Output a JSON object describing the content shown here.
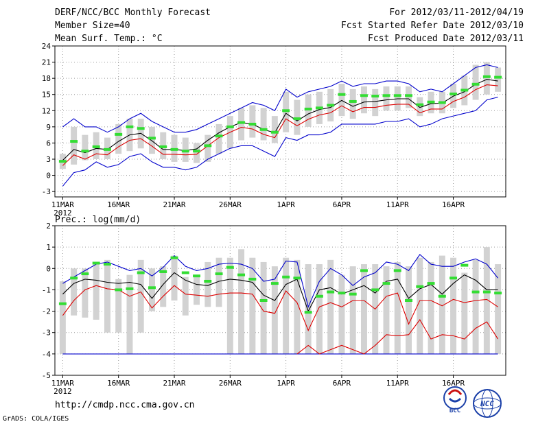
{
  "header": {
    "title": "DERF/NCC/BCC Monthly Forecast",
    "member_size": "Member Size=40",
    "variable": "Mean Surf. Temp.: °C",
    "period": "For 2012/03/11-2012/04/19",
    "fcst_started": "Fcst Started Refer Date 2012/03/10",
    "fcst_produced": "Fcst Produced Date 2012/03/11"
  },
  "footer": {
    "url": "http://cmdp.ncc.cma.gov.cn",
    "grads_credit": "GrADS: COLA/IGES",
    "logo_bcc": "BCC",
    "logo_ncc": "NCC"
  },
  "colors": {
    "box": "#d2d2d2",
    "median": "#33dd33",
    "mean": "#000000",
    "lower_band": "#dd0000",
    "envelope": "#0000cc",
    "grid": "#999999"
  },
  "chart_data": [
    {
      "type": "box",
      "title": "Mean Surf. Temp.: °C",
      "x_tick_labels": [
        "11MAR",
        "16MAR",
        "21MAR",
        "26MAR",
        "1APR",
        "6APR",
        "11APR",
        "16APR"
      ],
      "x_tick_days": [
        1,
        6,
        11,
        16,
        21,
        26,
        31,
        36
      ],
      "x_year_label": "2012",
      "x_range": [
        0.3,
        40.7
      ],
      "ylim": [
        -4,
        24
      ],
      "y_ticks": [
        -3,
        0,
        3,
        6,
        9,
        12,
        15,
        18,
        21,
        24
      ],
      "days": [
        1,
        2,
        3,
        4,
        5,
        6,
        7,
        8,
        9,
        10,
        11,
        12,
        13,
        14,
        15,
        16,
        17,
        18,
        19,
        20,
        21,
        22,
        23,
        24,
        25,
        26,
        27,
        28,
        29,
        30,
        31,
        32,
        33,
        34,
        35,
        36,
        37,
        38,
        39,
        40
      ],
      "box_low": [
        1.2,
        2.0,
        2.8,
        3.0,
        3.0,
        4.0,
        4.5,
        5.0,
        4.0,
        3.0,
        2.5,
        2.5,
        2.3,
        2.5,
        4.0,
        5.0,
        6.5,
        7.0,
        6.5,
        6.0,
        8.0,
        7.5,
        9.0,
        9.5,
        10.0,
        11.0,
        10.5,
        11.5,
        11.0,
        12.0,
        12.0,
        12.5,
        11.0,
        11.5,
        11.5,
        12.5,
        13.0,
        14.0,
        15.0,
        15.5
      ],
      "box_high": [
        4.0,
        9.0,
        7.5,
        8.0,
        7.0,
        9.5,
        10.5,
        10.5,
        9.0,
        8.0,
        7.5,
        7.0,
        6.0,
        7.5,
        9.5,
        11.0,
        12.5,
        13.0,
        12.5,
        11.0,
        15.5,
        14.0,
        15.0,
        15.5,
        16.0,
        17.0,
        16.0,
        16.5,
        16.0,
        16.5,
        16.5,
        16.5,
        14.5,
        15.5,
        15.5,
        17.0,
        18.5,
        20.5,
        21.0,
        20.0
      ],
      "median": [
        2.6,
        6.3,
        4.5,
        5.3,
        4.8,
        7.6,
        9.0,
        8.7,
        6.9,
        5.3,
        4.8,
        4.5,
        4.5,
        5.5,
        7.3,
        9.0,
        9.8,
        9.5,
        8.5,
        8.0,
        12.0,
        10.5,
        12.3,
        12.5,
        13.0,
        15.0,
        13.7,
        14.8,
        14.7,
        14.8,
        14.8,
        14.8,
        13.1,
        13.6,
        13.5,
        15.1,
        15.8,
        16.9,
        18.3,
        18.2
      ],
      "mean": [
        2.8,
        4.8,
        4.2,
        5.0,
        4.8,
        6.3,
        7.5,
        7.8,
        6.4,
        4.8,
        4.8,
        4.6,
        4.9,
        6.5,
        7.9,
        9.0,
        9.8,
        9.5,
        8.5,
        7.9,
        11.5,
        10.1,
        11.4,
        12.2,
        12.6,
        13.9,
        12.8,
        13.6,
        13.7,
        14.0,
        14.2,
        14.2,
        12.6,
        13.3,
        13.4,
        14.7,
        15.5,
        16.9,
        17.8,
        17.5
      ],
      "lower": [
        1.8,
        3.8,
        3.0,
        4.0,
        3.8,
        5.3,
        6.5,
        6.8,
        5.4,
        3.9,
        3.9,
        3.8,
        3.9,
        5.5,
        7.0,
        8.0,
        8.9,
        8.6,
        7.6,
        7.0,
        10.5,
        9.2,
        10.4,
        11.2,
        11.6,
        12.9,
        11.8,
        12.6,
        12.6,
        13.0,
        13.2,
        13.2,
        11.6,
        12.3,
        12.3,
        13.7,
        14.5,
        15.9,
        16.8,
        16.6
      ],
      "env_high": [
        9.0,
        10.5,
        9.0,
        9.0,
        8.0,
        9.0,
        10.5,
        11.5,
        10.0,
        9.0,
        8.0,
        8.0,
        8.5,
        9.5,
        10.5,
        11.5,
        12.5,
        13.5,
        13.0,
        12.0,
        16.0,
        14.5,
        15.5,
        16.0,
        16.5,
        17.5,
        16.5,
        17.0,
        17.0,
        17.5,
        17.5,
        17.0,
        15.5,
        16.0,
        15.5,
        17.0,
        18.5,
        20.0,
        20.5,
        20.0
      ],
      "env_low": [
        -2.0,
        0.5,
        1.0,
        2.5,
        1.5,
        2.0,
        3.5,
        4.0,
        2.5,
        1.5,
        1.5,
        1.0,
        1.5,
        3.0,
        4.0,
        5.0,
        5.5,
        5.5,
        4.5,
        3.5,
        7.0,
        6.5,
        7.5,
        7.5,
        8.0,
        9.5,
        9.5,
        9.5,
        9.5,
        10.0,
        10.0,
        10.5,
        9.0,
        9.5,
        10.5,
        11.0,
        11.5,
        12.0,
        14.0,
        14.5
      ]
    },
    {
      "type": "box",
      "title": "Prec.: log(mm/d)",
      "x_tick_labels": [
        "11MAR",
        "16MAR",
        "21MAR",
        "26MAR",
        "1APR",
        "6APR",
        "11APR",
        "16APR"
      ],
      "x_tick_days": [
        1,
        6,
        11,
        16,
        21,
        26,
        31,
        36
      ],
      "x_year_label": "2012",
      "x_range": [
        0.3,
        40.7
      ],
      "ylim": [
        -5,
        2
      ],
      "y_ticks": [
        -5,
        -4,
        -3,
        -2,
        -1,
        0,
        1,
        2
      ],
      "days": [
        1,
        2,
        3,
        4,
        5,
        6,
        7,
        8,
        9,
        10,
        11,
        12,
        13,
        14,
        15,
        16,
        17,
        18,
        19,
        20,
        21,
        22,
        23,
        24,
        25,
        26,
        27,
        28,
        29,
        30,
        31,
        32,
        33,
        34,
        35,
        36,
        37,
        38,
        39,
        40
      ],
      "box_low": [
        -4.0,
        -2.2,
        -2.3,
        -2.4,
        -3.0,
        -3.0,
        -4.0,
        -3.0,
        -2.0,
        -1.8,
        -1.5,
        -2.2,
        -1.7,
        -1.8,
        -1.8,
        -4.0,
        -4.0,
        -4.0,
        -4.0,
        -4.0,
        -4.0,
        -4.0,
        -4.0,
        -4.0,
        -4.0,
        -4.0,
        -4.0,
        -4.0,
        -4.0,
        -4.0,
        -4.0,
        -4.0,
        -4.0,
        -4.0,
        -4.0,
        -4.0,
        -4.0,
        -4.0,
        -4.0,
        -4.0
      ],
      "box_high": [
        -0.6,
        0.0,
        0.0,
        0.3,
        0.4,
        -0.5,
        -0.3,
        0.4,
        0.0,
        0.1,
        0.6,
        -0.4,
        -0.4,
        0.3,
        0.5,
        0.5,
        0.9,
        0.5,
        0.3,
        0.1,
        0.5,
        0.4,
        0.2,
        0.2,
        0.4,
        -0.3,
        0.1,
        0.2,
        0.2,
        0.1,
        0.3,
        0.1,
        0.5,
        0.3,
        0.6,
        0.5,
        -0.2,
        0.4,
        1.0,
        0.2
      ],
      "median": [
        -1.65,
        -0.45,
        -0.25,
        0.25,
        0.2,
        -1.0,
        -0.95,
        -0.2,
        -0.9,
        -0.15,
        0.5,
        -0.2,
        -0.35,
        -0.6,
        -0.25,
        0.05,
        -0.3,
        -0.5,
        -1.5,
        -0.7,
        -0.4,
        -0.45,
        -2.05,
        -1.3,
        -1.1,
        -1.15,
        -1.2,
        -0.1,
        -1.0,
        -0.7,
        -0.1,
        -1.5,
        -0.85,
        -0.7,
        -1.3,
        -0.45,
        0.15,
        -1.1,
        -1.1,
        -1.15
      ],
      "mean": [
        -1.2,
        -0.7,
        -0.5,
        -0.55,
        -0.65,
        -0.7,
        -0.65,
        -0.75,
        -1.4,
        -0.75,
        -0.2,
        -0.55,
        -0.75,
        -0.8,
        -0.6,
        -0.5,
        -0.55,
        -0.65,
        -1.25,
        -1.5,
        -0.75,
        -0.5,
        -2.0,
        -1.0,
        -0.9,
        -1.2,
        -1.0,
        -0.8,
        -1.15,
        -0.6,
        -0.5,
        -1.4,
        -0.95,
        -0.75,
        -1.2,
        -0.7,
        -0.3,
        -0.55,
        -1.0,
        -1.0
      ],
      "lower": [
        -2.2,
        -1.5,
        -1.0,
        -0.8,
        -0.95,
        -1.0,
        -1.3,
        -1.1,
        -1.85,
        -1.3,
        -0.8,
        -1.2,
        -1.25,
        -1.3,
        -1.2,
        -1.15,
        -1.15,
        -1.2,
        -2.0,
        -2.1,
        -1.05,
        -1.6,
        -2.9,
        -1.8,
        -1.6,
        -1.8,
        -1.5,
        -1.5,
        -1.9,
        -1.3,
        -1.15,
        -2.6,
        -1.5,
        -1.5,
        -1.75,
        -1.45,
        -1.6,
        -1.5,
        -1.45,
        -1.8
      ],
      "env_high": [
        -0.7,
        -0.4,
        -0.1,
        0.2,
        0.3,
        0.1,
        -0.1,
        0.0,
        -0.35,
        0.05,
        0.6,
        0.1,
        -0.1,
        0.0,
        0.2,
        0.25,
        0.2,
        0.0,
        -0.6,
        -0.5,
        0.35,
        0.3,
        -1.8,
        -0.6,
        0.0,
        -0.3,
        -0.8,
        -0.4,
        -0.2,
        0.3,
        0.2,
        -0.1,
        0.65,
        0.2,
        0.1,
        0.1,
        0.3,
        0.45,
        0.2,
        -0.45
      ],
      "env_low": [
        -4.0,
        -4.0,
        -4.0,
        -4.0,
        -4.0,
        -4.0,
        -4.0,
        -4.0,
        -4.0,
        -4.0,
        -4.0,
        -4.0,
        -4.0,
        -4.0,
        -4.0,
        -4.0,
        -4.0,
        -4.0,
        -4.0,
        -4.0,
        -4.0,
        -4.0,
        -4.0,
        -4.0,
        -4.0,
        -4.0,
        -4.0,
        -4.0,
        -4.0,
        -4.0,
        -4.0,
        -4.0,
        -4.0,
        -4.0,
        -4.0,
        -4.0,
        -4.0,
        -4.0,
        -4.0,
        -4.0
      ],
      "extra_low_line": [
        null,
        null,
        null,
        null,
        null,
        null,
        null,
        null,
        null,
        null,
        null,
        null,
        null,
        null,
        null,
        null,
        null,
        null,
        null,
        null,
        null,
        -4.0,
        -3.6,
        -4.0,
        -3.8,
        -3.6,
        -3.8,
        -4.0,
        -3.6,
        -3.1,
        -3.15,
        -3.1,
        -2.4,
        -3.3,
        -3.1,
        -3.15,
        -3.3,
        -2.8,
        -2.5,
        -3.3
      ]
    }
  ]
}
